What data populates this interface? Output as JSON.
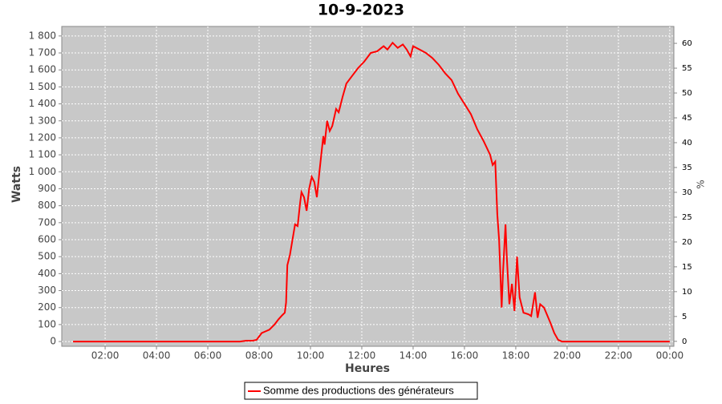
{
  "chart_data": {
    "type": "line",
    "title": "10-9-2023",
    "x_label": "Heures",
    "y_label": "Watts",
    "y2_label": "%",
    "x": [
      0.75,
      2,
      4,
      6,
      7.25,
      7.5,
      7.75,
      7.9,
      8.0,
      8.1,
      8.25,
      8.4,
      8.5,
      8.6,
      8.75,
      8.9,
      9.0,
      9.05,
      9.1,
      9.2,
      9.3,
      9.4,
      9.5,
      9.6,
      9.65,
      9.75,
      9.85,
      9.95,
      10.05,
      10.15,
      10.25,
      10.35,
      10.5,
      10.55,
      10.65,
      10.75,
      10.85,
      11.0,
      11.1,
      11.25,
      11.4,
      11.6,
      11.85,
      12.1,
      12.35,
      12.6,
      12.85,
      13.0,
      13.2,
      13.4,
      13.6,
      13.75,
      13.9,
      14.0,
      14.25,
      14.5,
      14.75,
      15.0,
      15.25,
      15.5,
      15.75,
      16.0,
      16.25,
      16.5,
      16.75,
      17.0,
      17.1,
      17.2,
      17.28,
      17.35,
      17.45,
      17.5,
      17.6,
      17.65,
      17.75,
      17.85,
      17.95,
      18.05,
      18.15,
      18.3,
      18.5,
      18.6,
      18.75,
      18.85,
      18.95,
      19.1,
      19.35,
      19.5,
      19.65,
      19.8,
      21,
      23,
      24
    ],
    "series": [
      {
        "name": "Somme des productions des  générateurs",
        "color": "#ff0000",
        "values": [
          0,
          0,
          0,
          0,
          0,
          5,
          5,
          10,
          30,
          50,
          60,
          70,
          85,
          100,
          130,
          155,
          170,
          230,
          450,
          510,
          600,
          690,
          680,
          820,
          880,
          850,
          770,
          900,
          970,
          940,
          850,
          1000,
          1210,
          1160,
          1300,
          1240,
          1270,
          1370,
          1350,
          1440,
          1520,
          1560,
          1610,
          1650,
          1700,
          1710,
          1740,
          1720,
          1760,
          1730,
          1750,
          1720,
          1680,
          1740,
          1720,
          1700,
          1670,
          1630,
          1580,
          1540,
          1460,
          1400,
          1340,
          1250,
          1180,
          1100,
          1040,
          1060,
          750,
          600,
          200,
          400,
          690,
          500,
          220,
          340,
          180,
          500,
          260,
          170,
          160,
          150,
          290,
          140,
          220,
          200,
          110,
          50,
          10,
          0,
          0,
          0,
          0
        ]
      }
    ],
    "xlim": [
      0.31,
      24.16
    ],
    "xticks": [
      {
        "value": 2,
        "label": "02:00"
      },
      {
        "value": 4,
        "label": "04:00"
      },
      {
        "value": 6,
        "label": "06:00"
      },
      {
        "value": 8,
        "label": "08:00"
      },
      {
        "value": 10,
        "label": "10:00"
      },
      {
        "value": 12,
        "label": "12:00"
      },
      {
        "value": 14,
        "label": "14:00"
      },
      {
        "value": 16,
        "label": "16:00"
      },
      {
        "value": 18,
        "label": "18:00"
      },
      {
        "value": 20,
        "label": "20:00"
      },
      {
        "value": 22,
        "label": "22:00"
      },
      {
        "value": 24,
        "label": "00:00"
      }
    ],
    "ylim": [
      -28,
      1856
    ],
    "yticks": [
      0,
      100,
      200,
      300,
      400,
      500,
      600,
      700,
      800,
      900,
      {
        "value": 1000,
        "label": "1 000"
      },
      {
        "value": 1100,
        "label": "1 100"
      },
      {
        "value": 1200,
        "label": "1 200"
      },
      {
        "value": 1300,
        "label": "1 300"
      },
      {
        "value": 1400,
        "label": "1 400"
      },
      {
        "value": 1500,
        "label": "1 500"
      },
      {
        "value": 1600,
        "label": "1 600"
      },
      {
        "value": 1700,
        "label": "1 700"
      },
      {
        "value": 1800,
        "label": "1 800"
      }
    ],
    "y2lim": [
      -1,
      63.4
    ],
    "y2ticks": [
      0,
      5,
      10,
      15,
      20,
      25,
      30,
      35,
      40,
      45,
      50,
      55,
      60
    ],
    "grid": true
  }
}
